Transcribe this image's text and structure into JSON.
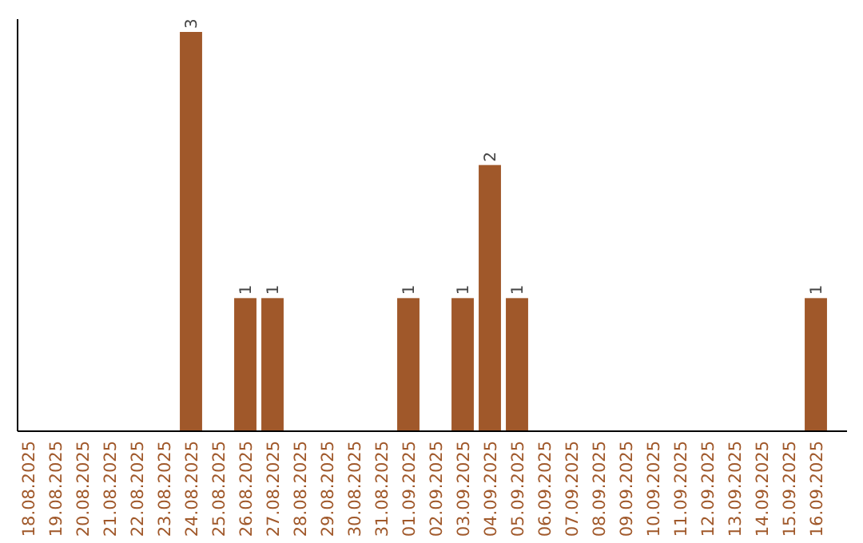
{
  "chart_data": {
    "type": "bar",
    "categories": [
      "18.08.2025",
      "19.08.2025",
      "20.08.2025",
      "21.08.2025",
      "22.08.2025",
      "23.08.2025",
      "24.08.2025",
      "25.08.2025",
      "26.08.2025",
      "27.08.2025",
      "28.08.2025",
      "29.08.2025",
      "30.08.2025",
      "31.08.2025",
      "01.09.2025",
      "02.09.2025",
      "03.09.2025",
      "04.09.2025",
      "05.09.2025",
      "06.09.2025",
      "07.09.2025",
      "08.09.2025",
      "09.09.2025",
      "10.09.2025",
      "11.09.2025",
      "12.09.2025",
      "13.09.2025",
      "14.09.2025",
      "15.09.2025",
      "16.09.2025"
    ],
    "values": [
      null,
      null,
      null,
      null,
      null,
      null,
      3,
      null,
      1,
      1,
      null,
      null,
      null,
      null,
      1,
      null,
      1,
      2,
      1,
      null,
      null,
      null,
      null,
      null,
      null,
      null,
      null,
      null,
      null,
      1
    ],
    "color": "#a0582a",
    "data_labels": true,
    "tick_labels": "x"
  }
}
